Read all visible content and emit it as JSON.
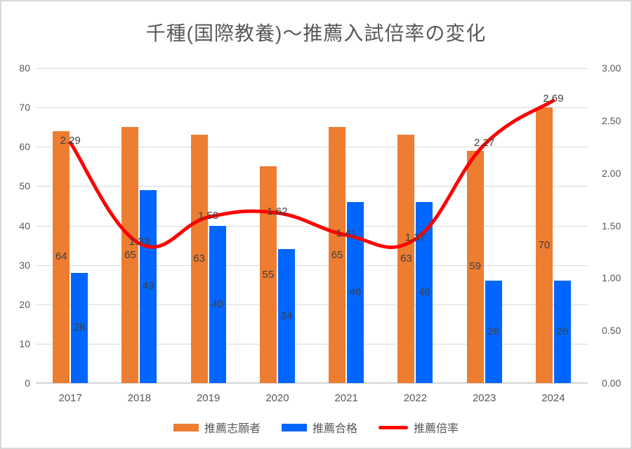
{
  "title": "千種(国際教養)～推薦入試倍率の変化",
  "colors": {
    "applicants_bar": "#ED7D31",
    "accepted_bar": "#0066FF",
    "ratio_line": "#FF0000",
    "gridline": "#D9D9D9",
    "axis_text": "#595959",
    "data_label_text": "#404040"
  },
  "chart_data": {
    "type": "combo-bar-line",
    "title": "千種(国際教養)～推薦入試倍率の変化",
    "categories": [
      "2017",
      "2018",
      "2019",
      "2020",
      "2021",
      "2022",
      "2023",
      "2024"
    ],
    "series": [
      {
        "name": "推薦志願者",
        "key": "applicants",
        "type": "bar",
        "axis": "left",
        "color": "#ED7D31",
        "values": [
          64,
          65,
          63,
          55,
          65,
          63,
          59,
          70
        ],
        "labels": [
          "64",
          "65",
          "63",
          "55",
          "65",
          "63",
          "59",
          "70"
        ]
      },
      {
        "name": "推薦合格",
        "key": "accepted",
        "type": "bar",
        "axis": "left",
        "color": "#0066FF",
        "values": [
          28,
          49,
          40,
          34,
          46,
          46,
          26,
          26
        ],
        "labels": [
          "28",
          "49",
          "40",
          "34",
          "46",
          "46",
          "26",
          "26"
        ]
      },
      {
        "name": "推薦倍率",
        "key": "ratio",
        "type": "line",
        "axis": "right",
        "color": "#FF0000",
        "values": [
          2.29,
          1.33,
          1.58,
          1.62,
          1.41,
          1.37,
          2.27,
          2.69
        ],
        "labels": [
          "2.29",
          "1.33",
          "1.58",
          "1.62",
          "1.41",
          "1.37",
          "2.27",
          "2.69"
        ]
      }
    ],
    "left_axis": {
      "min": 0,
      "max": 80,
      "step": 10,
      "ticks": [
        "0",
        "10",
        "20",
        "30",
        "40",
        "50",
        "60",
        "70",
        "80"
      ]
    },
    "right_axis": {
      "min": 0,
      "max": 3.0,
      "step": 0.5,
      "ticks": [
        "0.00",
        "0.50",
        "1.00",
        "1.50",
        "2.00",
        "2.50",
        "3.00"
      ]
    },
    "grid": true,
    "legend_position": "bottom"
  }
}
